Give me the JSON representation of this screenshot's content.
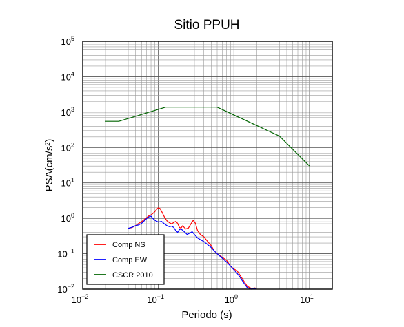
{
  "chart_data": {
    "type": "line",
    "title": "Sitio PPUH",
    "xlabel": "Periodo (s)",
    "ylabel": "PSA(cm/s²)",
    "x_scale": "log",
    "y_scale": "log",
    "xlim": [
      0.01,
      20
    ],
    "ylim": [
      0.01,
      100000
    ],
    "grid": true,
    "legend_position": "bottom-left",
    "x_ticks": [
      {
        "base": "10",
        "exp": "−2"
      },
      {
        "base": "10",
        "exp": "−1"
      },
      {
        "base": "10",
        "exp": "0"
      },
      {
        "base": "10",
        "exp": "1"
      }
    ],
    "y_ticks": [
      {
        "base": "10",
        "exp": "−2"
      },
      {
        "base": "10",
        "exp": "−1"
      },
      {
        "base": "10",
        "exp": "0"
      },
      {
        "base": "10",
        "exp": "1"
      },
      {
        "base": "10",
        "exp": "2"
      },
      {
        "base": "10",
        "exp": "3"
      },
      {
        "base": "10",
        "exp": "4"
      },
      {
        "base": "10",
        "exp": "5"
      }
    ],
    "series": [
      {
        "name": "Comp NS",
        "color": "#ff0000",
        "points": [
          [
            0.04,
            0.52
          ],
          [
            0.045,
            0.55
          ],
          [
            0.05,
            0.62
          ],
          [
            0.055,
            0.72
          ],
          [
            0.06,
            0.8
          ],
          [
            0.065,
            0.92
          ],
          [
            0.07,
            1.05
          ],
          [
            0.075,
            1.18
          ],
          [
            0.08,
            1.25
          ],
          [
            0.085,
            1.38
          ],
          [
            0.09,
            1.55
          ],
          [
            0.095,
            1.8
          ],
          [
            0.1,
            1.98
          ],
          [
            0.105,
            1.9
          ],
          [
            0.11,
            1.6
          ],
          [
            0.12,
            1.1
          ],
          [
            0.13,
            0.85
          ],
          [
            0.14,
            0.75
          ],
          [
            0.15,
            0.7
          ],
          [
            0.16,
            0.76
          ],
          [
            0.17,
            0.82
          ],
          [
            0.18,
            0.72
          ],
          [
            0.19,
            0.55
          ],
          [
            0.2,
            0.53
          ],
          [
            0.21,
            0.62
          ],
          [
            0.22,
            0.55
          ],
          [
            0.23,
            0.5
          ],
          [
            0.25,
            0.53
          ],
          [
            0.27,
            0.7
          ],
          [
            0.29,
            0.88
          ],
          [
            0.31,
            0.72
          ],
          [
            0.33,
            0.45
          ],
          [
            0.36,
            0.35
          ],
          [
            0.4,
            0.3
          ],
          [
            0.45,
            0.22
          ],
          [
            0.5,
            0.17
          ],
          [
            0.55,
            0.12
          ],
          [
            0.6,
            0.1
          ],
          [
            0.7,
            0.08
          ],
          [
            0.8,
            0.065
          ],
          [
            0.9,
            0.045
          ],
          [
            1.0,
            0.037
          ],
          [
            1.1,
            0.033
          ],
          [
            1.2,
            0.025
          ],
          [
            1.35,
            0.017
          ],
          [
            1.5,
            0.012
          ],
          [
            1.7,
            0.0105
          ],
          [
            1.9,
            0.0108
          ],
          [
            2.0,
            0.01
          ]
        ]
      },
      {
        "name": "Comp EW",
        "color": "#0000ff",
        "points": [
          [
            0.04,
            0.52
          ],
          [
            0.045,
            0.56
          ],
          [
            0.05,
            0.62
          ],
          [
            0.055,
            0.65
          ],
          [
            0.06,
            0.72
          ],
          [
            0.065,
            0.85
          ],
          [
            0.07,
            0.98
          ],
          [
            0.075,
            1.1
          ],
          [
            0.08,
            1.15
          ],
          [
            0.085,
            0.98
          ],
          [
            0.09,
            0.88
          ],
          [
            0.1,
            0.78
          ],
          [
            0.11,
            0.82
          ],
          [
            0.12,
            0.7
          ],
          [
            0.13,
            0.62
          ],
          [
            0.14,
            0.58
          ],
          [
            0.15,
            0.6
          ],
          [
            0.16,
            0.55
          ],
          [
            0.17,
            0.45
          ],
          [
            0.18,
            0.4
          ],
          [
            0.19,
            0.48
          ],
          [
            0.2,
            0.5
          ],
          [
            0.22,
            0.42
          ],
          [
            0.24,
            0.35
          ],
          [
            0.26,
            0.38
          ],
          [
            0.28,
            0.42
          ],
          [
            0.3,
            0.35
          ],
          [
            0.33,
            0.28
          ],
          [
            0.36,
            0.25
          ],
          [
            0.4,
            0.22
          ],
          [
            0.45,
            0.18
          ],
          [
            0.5,
            0.15
          ],
          [
            0.55,
            0.12
          ],
          [
            0.6,
            0.1
          ],
          [
            0.7,
            0.075
          ],
          [
            0.8,
            0.058
          ],
          [
            0.9,
            0.045
          ],
          [
            1.0,
            0.035
          ],
          [
            1.1,
            0.028
          ],
          [
            1.2,
            0.022
          ],
          [
            1.35,
            0.015
          ],
          [
            1.5,
            0.011
          ],
          [
            1.7,
            0.01
          ],
          [
            1.9,
            0.0105
          ],
          [
            2.0,
            0.01
          ]
        ]
      },
      {
        "name": "CSCR 2010",
        "color": "#006400",
        "points": [
          [
            0.02,
            550
          ],
          [
            0.03,
            550
          ],
          [
            0.125,
            1380
          ],
          [
            0.6,
            1380
          ],
          [
            4.0,
            210
          ],
          [
            10.0,
            30
          ]
        ]
      }
    ]
  }
}
